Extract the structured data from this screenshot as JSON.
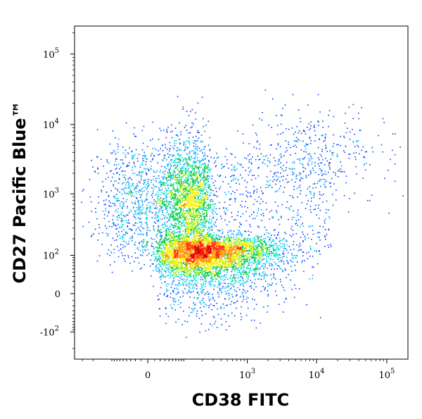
{
  "chart_data": {
    "type": "scatter",
    "subtype": "flow-cytometry-density-dot-plot",
    "xlabel": "CD38 FITC",
    "ylabel": "CD27 Pacific Blue™",
    "x_scale": "biexponential",
    "y_scale": "biexponential",
    "xlim": [
      -400,
      200000
    ],
    "ylim": [
      -300,
      250000
    ],
    "x_ticks": [
      {
        "value": 0,
        "base": "0",
        "exp": ""
      },
      {
        "value": 1000,
        "base": "10",
        "exp": "3"
      },
      {
        "value": 10000,
        "base": "10",
        "exp": "4"
      },
      {
        "value": 100000,
        "base": "10",
        "exp": "5"
      }
    ],
    "y_ticks": [
      {
        "value": -100,
        "base": "-10",
        "exp": "2"
      },
      {
        "value": 0,
        "base": "0",
        "exp": ""
      },
      {
        "value": 100,
        "base": "10",
        "exp": "2"
      },
      {
        "value": 1000,
        "base": "10",
        "exp": "3"
      },
      {
        "value": 10000,
        "base": "10",
        "exp": "4"
      },
      {
        "value": 100000,
        "base": "10",
        "exp": "5"
      }
    ],
    "colormap": [
      "#0000cc",
      "#0044ff",
      "#00aaff",
      "#00e0e0",
      "#00cc44",
      "#aaee00",
      "#ffee00",
      "#ff9900",
      "#ff3300",
      "#dd0000"
    ],
    "populations": [
      {
        "name": "",
        "x_center": 80,
        "y_center": 800,
        "x_spread": 90,
        "y_spread_decades": 0.45,
        "weight": 0.3
      },
      {
        "name": "",
        "x_center": 250,
        "y_center": 100,
        "x_spread_decades": 0.55,
        "y_spread": 60,
        "weight": 0.45
      },
      {
        "name": "",
        "x_center": 10000,
        "y_center": 4000,
        "x_spread_decades": 0.5,
        "y_spread_decades": 0.35,
        "weight": 0.04
      }
    ],
    "grid": false,
    "legend": "none"
  }
}
